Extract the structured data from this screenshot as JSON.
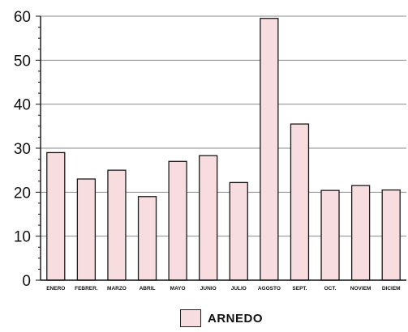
{
  "chart_data": {
    "type": "bar",
    "title": "",
    "xlabel": "",
    "ylabel": "",
    "categories": [
      "ENERO",
      "FEBRER.",
      "MARZO",
      "ABRIL",
      "MAYO",
      "JUNIO",
      "JULIO",
      "AGOSTO",
      "SEPT.",
      "OCT.",
      "NOVIEM",
      "DICIEM"
    ],
    "series": [
      {
        "name": "ARNEDO",
        "values": [
          29,
          23,
          25,
          19,
          27,
          28.3,
          22.2,
          59.5,
          35.5,
          20.4,
          21.5,
          20.5
        ]
      }
    ],
    "ylim": [
      0,
      60
    ],
    "yticks": [
      "0",
      "10",
      "20",
      "30",
      "40",
      "50",
      "60"
    ],
    "grid": true,
    "legend_position": "bottom-center",
    "colors": {
      "bar_fill": "#f7dde0",
      "bar_stroke": "#1a1a1a",
      "grid": "#8a8a8a",
      "axis": "#111111"
    }
  }
}
